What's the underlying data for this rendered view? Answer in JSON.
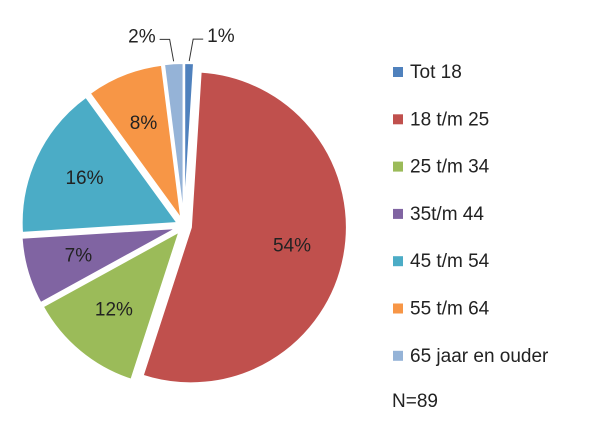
{
  "chart_data": {
    "type": "pie",
    "categories": [
      "Tot 18",
      "18 t/m 25",
      "25 t/m 34",
      "35t/m 44",
      "45 t/m 54",
      "55 t/m 64",
      "65 jaar en ouder"
    ],
    "values": [
      1,
      54,
      12,
      7,
      16,
      8,
      2
    ],
    "value_labels": [
      "1%",
      "54%",
      "12%",
      "7%",
      "16%",
      "8%",
      "2%"
    ],
    "colors": [
      "#4f81bd",
      "#c0504d",
      "#9bbb59",
      "#8064a2",
      "#4bacc6",
      "#f79646",
      "#95b3d7"
    ],
    "legend": "right",
    "annotation": "N=89"
  }
}
